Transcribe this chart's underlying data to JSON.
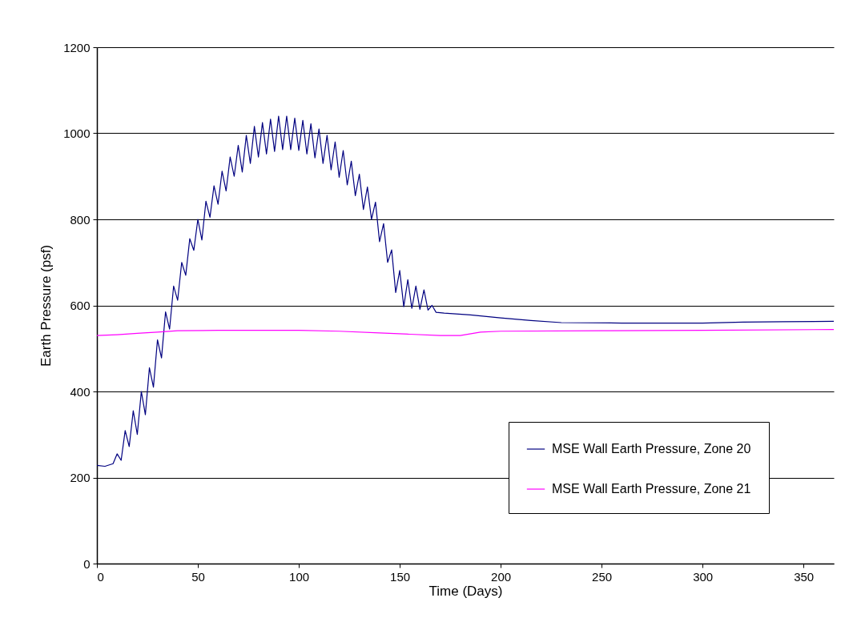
{
  "chart_data": {
    "type": "line",
    "xlabel": "Time (Days)",
    "ylabel": "Earth Pressure (psf)",
    "xlim": [
      0,
      365
    ],
    "xticks": [
      0,
      50,
      100,
      150,
      200,
      250,
      300,
      350
    ],
    "ylim": [
      0,
      1200
    ],
    "yticks": [
      0,
      200,
      400,
      600,
      800,
      1000,
      1200
    ],
    "grid": "y",
    "legend": "bottom right",
    "series": [
      {
        "name": "MSE Wall Earth Pressure, Zone 20",
        "color": "#000080",
        "x": [
          0,
          4,
          8,
          10,
          12,
          14,
          16,
          18,
          20,
          22,
          24,
          26,
          28,
          30,
          32,
          34,
          36,
          38,
          40,
          42,
          44,
          46,
          48,
          50,
          52,
          54,
          56,
          58,
          60,
          62,
          64,
          66,
          68,
          70,
          72,
          74,
          76,
          78,
          80,
          82,
          84,
          86,
          88,
          90,
          92,
          94,
          96,
          98,
          100,
          102,
          104,
          106,
          108,
          110,
          112,
          114,
          116,
          118,
          120,
          122,
          124,
          126,
          128,
          130,
          132,
          134,
          136,
          138,
          140,
          142,
          144,
          146,
          148,
          150,
          152,
          154,
          156,
          158,
          160,
          162,
          164,
          166,
          168,
          172,
          185,
          200,
          215,
          230,
          260,
          300,
          320,
          340,
          365
        ],
        "values": [
          228,
          226,
          232,
          255,
          240,
          309,
          272,
          355,
          300,
          400,
          346,
          455,
          410,
          520,
          478,
          585,
          545,
          645,
          612,
          700,
          670,
          755,
          728,
          800,
          752,
          842,
          805,
          878,
          835,
          912,
          866,
          945,
          900,
          972,
          910,
          995,
          930,
          1016,
          945,
          1025,
          952,
          1033,
          958,
          1040,
          962,
          1040,
          962,
          1035,
          960,
          1030,
          952,
          1022,
          943,
          1010,
          930,
          995,
          915,
          980,
          898,
          960,
          880,
          935,
          855,
          905,
          823,
          875,
          800,
          840,
          748,
          790,
          700,
          729,
          630,
          681,
          597,
          660,
          593,
          645,
          591,
          636,
          589,
          600,
          584,
          582,
          578,
          571,
          565,
          560,
          559,
          559,
          561,
          562,
          563
        ]
      },
      {
        "name": "MSE Wall Earth Pressure, Zone 21",
        "color": "#ff00ff",
        "x": [
          0,
          10,
          20,
          30,
          40,
          60,
          100,
          120,
          140,
          155,
          170,
          180,
          190,
          200,
          250,
          300,
          365
        ],
        "values": [
          530,
          532,
          535,
          538,
          541,
          542,
          542,
          540,
          536,
          533,
          530,
          530,
          538,
          540,
          541,
          542,
          544
        ]
      }
    ]
  }
}
